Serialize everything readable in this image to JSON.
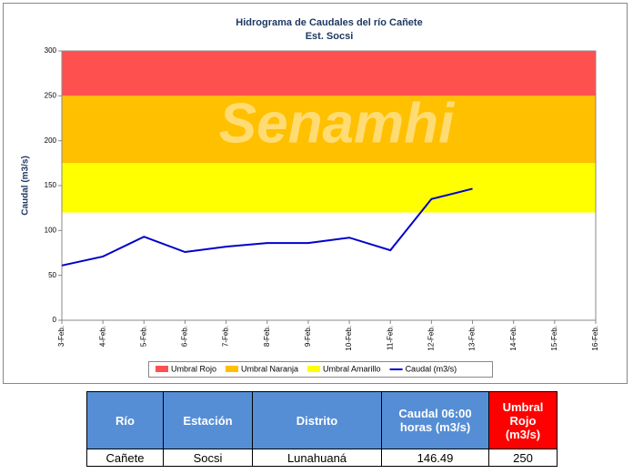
{
  "chart_data": {
    "type": "line",
    "title": "Hidrograma de Caudales del río Cañete",
    "subtitle": "Est. Socsi",
    "ylabel": "Caudal (m3/s)",
    "watermark": "Senamhi",
    "categories": [
      "3-Feb.",
      "4-Feb.",
      "5-Feb.",
      "6-Feb.",
      "7-Feb.",
      "8-Feb.",
      "9-Feb.",
      "10-Feb.",
      "11-Feb.",
      "12-Feb.",
      "13-Feb.",
      "14-Feb.",
      "15-Feb.",
      "16-Feb."
    ],
    "bands": [
      {
        "name": "Umbral Rojo",
        "color": "#ff5050",
        "range": [
          250,
          300
        ]
      },
      {
        "name": "Umbral Naranja",
        "color": "#ffc000",
        "range": [
          175,
          250
        ]
      },
      {
        "name": "Umbral Amarillo",
        "color": "#ffff00",
        "range": [
          120,
          175
        ]
      }
    ],
    "series": [
      {
        "name": "Caudal (m3/s)",
        "color": "#0000cc",
        "values": [
          61,
          71,
          93,
          76,
          82,
          86,
          86,
          92,
          78,
          135,
          146.49,
          null,
          null,
          null
        ]
      }
    ],
    "ylim": [
      0,
      300
    ],
    "yticks": [
      0,
      50,
      100,
      150,
      200,
      250,
      300
    ]
  },
  "table": {
    "header": [
      "Río",
      "Estación",
      "Distrito",
      "Caudal 06:00 horas (m3/s)",
      "Umbral Rojo (m3/s)"
    ],
    "rows": [
      [
        "Cañete",
        "Socsi",
        "Lunahuaná",
        "146.49",
        "250"
      ]
    ]
  }
}
